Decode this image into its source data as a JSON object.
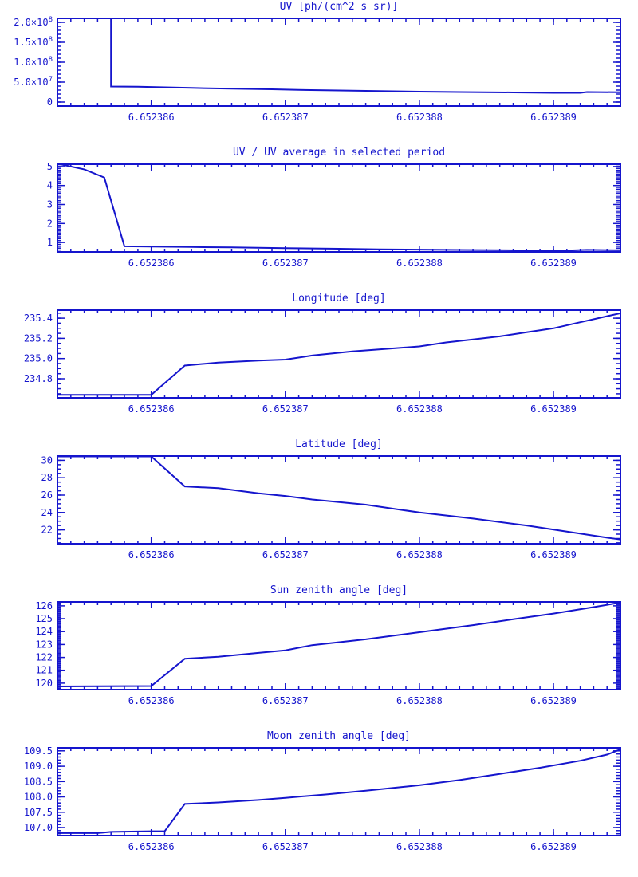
{
  "page": {
    "background": "#ffffff",
    "accent_color": "#1515cd"
  },
  "chart_data": [
    {
      "type": "line",
      "title": "UV [ph/(cm^2 s sr)]",
      "xlabel": "",
      "ylabel": "",
      "xlim": [
        6.6523853,
        6.6523895
      ],
      "ylim": [
        -10000000,
        210000000
      ],
      "xtick_values": [
        6.652386,
        6.652387,
        6.652388,
        6.652389
      ],
      "xtick_labels": [
        "6.652386",
        "6.652387",
        "6.652388",
        "6.652389"
      ],
      "ytick_values": [
        0,
        50000000,
        100000000,
        150000000,
        200000000
      ],
      "ytick_labels": [
        "0",
        "5.0×10^7",
        "1.0×10^8",
        "1.5×10^8",
        "2.0×10^8"
      ],
      "xminor": 1e-07,
      "yminor": 10000000,
      "grid": false,
      "legend": null,
      "color": "#1515cd",
      "x": [
        6.6523857,
        6.6523857,
        6.6523859,
        6.6523861,
        6.6523863,
        6.6523866,
        6.6523869,
        6.6523871,
        6.6523874,
        6.6523877,
        6.652388,
        6.6523883,
        6.6523887,
        6.652389,
        6.6523892,
        6.65238925,
        6.6523895
      ],
      "y": [
        230000000,
        39000000,
        38500000,
        37000000,
        35500000,
        33500000,
        32000000,
        30500000,
        29000000,
        27500000,
        26000000,
        25000000,
        24000000,
        23000000,
        23000000,
        25000000,
        24500000
      ]
    },
    {
      "type": "line",
      "title": "UV / UV average in selected period",
      "xlabel": "",
      "ylabel": "",
      "xlim": [
        6.6523853,
        6.6523895
      ],
      "ylim": [
        0.5,
        5.12
      ],
      "xtick_values": [
        6.652386,
        6.652387,
        6.652388,
        6.652389
      ],
      "xtick_labels": [
        "6.652386",
        "6.652387",
        "6.652388",
        "6.652389"
      ],
      "ytick_values": [
        1,
        2,
        3,
        4,
        5
      ],
      "ytick_labels": [
        "1",
        "2",
        "3",
        "4",
        "5"
      ],
      "xminor": 1e-07,
      "yminor": 0.1,
      "grid": false,
      "legend": null,
      "color": "#1515cd",
      "x": [
        6.6523853,
        6.6523855,
        6.65238565,
        6.6523858,
        6.652386,
        6.6523863,
        6.6523866,
        6.652387,
        6.6523874,
        6.6523877,
        6.652388,
        6.6523884,
        6.6523888,
        6.6523891,
        6.65238925,
        6.6523895
      ],
      "y": [
        5.15,
        4.85,
        4.42,
        0.8,
        0.78,
        0.76,
        0.74,
        0.7,
        0.67,
        0.64,
        0.62,
        0.6,
        0.58,
        0.57,
        0.61,
        0.59
      ]
    },
    {
      "type": "line",
      "title": "Longitude [deg]",
      "xlabel": "",
      "ylabel": "",
      "xlim": [
        6.6523853,
        6.6523895
      ],
      "ylim": [
        234.61,
        235.48
      ],
      "xtick_values": [
        6.652386,
        6.652387,
        6.652388,
        6.652389
      ],
      "xtick_labels": [
        "6.652386",
        "6.652387",
        "6.652388",
        "6.652389"
      ],
      "ytick_values": [
        234.8,
        235.0,
        235.2,
        235.4
      ],
      "ytick_labels": [
        "234.8",
        "235.0",
        "235.2",
        "235.4"
      ],
      "xminor": 1e-07,
      "yminor": 0.05,
      "grid": false,
      "legend": null,
      "color": "#1515cd",
      "x": [
        6.6523853,
        6.652386,
        6.65238625,
        6.6523865,
        6.6523868,
        6.652387,
        6.6523872,
        6.6523875,
        6.6523878,
        6.652388,
        6.6523882,
        6.6523884,
        6.6523886,
        6.6523888,
        6.652389,
        6.6523892,
        6.6523894,
        6.6523895
      ],
      "y": [
        234.64,
        234.64,
        234.93,
        234.96,
        234.98,
        234.99,
        235.03,
        235.07,
        235.1,
        235.12,
        235.16,
        235.19,
        235.22,
        235.26,
        235.3,
        235.36,
        235.42,
        235.45
      ]
    },
    {
      "type": "line",
      "title": "Latitude [deg]",
      "xlabel": "",
      "ylabel": "",
      "xlim": [
        6.6523853,
        6.6523895
      ],
      "ylim": [
        20.4,
        30.5
      ],
      "xtick_values": [
        6.652386,
        6.652387,
        6.652388,
        6.652389
      ],
      "xtick_labels": [
        "6.652386",
        "6.652387",
        "6.652388",
        "6.652389"
      ],
      "ytick_values": [
        22,
        24,
        26,
        28,
        30
      ],
      "ytick_labels": [
        "22",
        "24",
        "26",
        "28",
        "30"
      ],
      "xminor": 1e-07,
      "yminor": 0.5,
      "grid": false,
      "legend": null,
      "color": "#1515cd",
      "x": [
        6.6523853,
        6.652386,
        6.65238625,
        6.6523865,
        6.6523868,
        6.652387,
        6.6523872,
        6.6523876,
        6.652388,
        6.6523884,
        6.6523888,
        6.6523891,
        6.6523894,
        6.6523895
      ],
      "y": [
        30.45,
        30.45,
        27.0,
        26.8,
        26.2,
        25.9,
        25.5,
        24.9,
        24.0,
        23.3,
        22.5,
        21.8,
        21.1,
        20.9
      ]
    },
    {
      "type": "line",
      "title": "Sun zenith angle [deg]",
      "xlabel": "",
      "ylabel": "",
      "xlim": [
        6.6523853,
        6.6523895
      ],
      "ylim": [
        119.5,
        126.3
      ],
      "xtick_values": [
        6.652386,
        6.652387,
        6.652388,
        6.652389
      ],
      "xtick_labels": [
        "6.652386",
        "6.652387",
        "6.652388",
        "6.652389"
      ],
      "ytick_values": [
        120,
        121,
        122,
        123,
        124,
        125,
        126
      ],
      "ytick_labels": [
        "120",
        "121",
        "122",
        "123",
        "124",
        "125",
        "126"
      ],
      "xminor": 1e-07,
      "yminor": 0.1,
      "grid": false,
      "legend": null,
      "color": "#1515cd",
      "x": [
        6.6523853,
        6.652386,
        6.65238625,
        6.6523865,
        6.6523868,
        6.652387,
        6.6523872,
        6.6523876,
        6.652388,
        6.6523884,
        6.6523887,
        6.652389,
        6.6523893,
        6.6523895
      ],
      "y": [
        119.75,
        119.78,
        121.9,
        122.05,
        122.35,
        122.55,
        122.95,
        123.4,
        123.95,
        124.5,
        124.95,
        125.4,
        125.9,
        126.25
      ]
    },
    {
      "type": "line",
      "title": "Moon zenith angle [deg]",
      "xlabel": "",
      "ylabel": "",
      "xlim": [
        6.6523853,
        6.6523895
      ],
      "ylim": [
        106.74,
        109.6
      ],
      "xtick_values": [
        6.652386,
        6.652387,
        6.652388,
        6.652389
      ],
      "xtick_labels": [
        "6.652386",
        "6.652387",
        "6.652388",
        "6.652389"
      ],
      "ytick_values": [
        107.0,
        107.5,
        108.0,
        108.5,
        109.0,
        109.5
      ],
      "ytick_labels": [
        "107.0",
        "107.5",
        "108.0",
        "108.5",
        "109.0",
        "109.5"
      ],
      "xminor": 1e-07,
      "yminor": 0.1,
      "grid": false,
      "legend": null,
      "color": "#1515cd",
      "x": [
        6.6523853,
        6.6523856,
        6.6523857,
        6.652386,
        6.6523861,
        6.65238625,
        6.6523865,
        6.6523868,
        6.652387,
        6.6523873,
        6.6523876,
        6.652388,
        6.6523883,
        6.6523886,
        6.6523889,
        6.6523892,
        6.6523894,
        6.6523895
      ],
      "y": [
        106.82,
        106.82,
        106.86,
        106.88,
        106.88,
        107.77,
        107.82,
        107.9,
        107.97,
        108.08,
        108.2,
        108.38,
        108.55,
        108.75,
        108.95,
        109.18,
        109.38,
        109.55
      ]
    }
  ]
}
